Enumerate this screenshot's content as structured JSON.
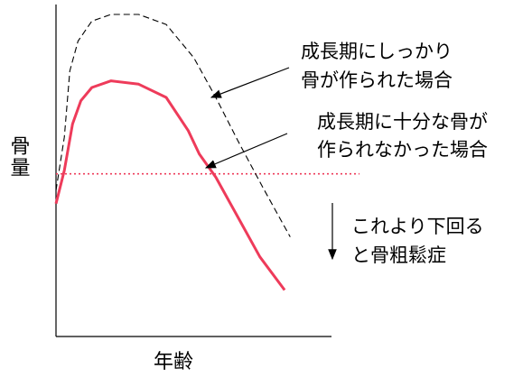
{
  "chart_data": {
    "type": "line",
    "title": "",
    "xlabel": "年齢",
    "ylabel": "骨量",
    "x_ticks": [],
    "y_ticks": [],
    "grid": false,
    "legend": "none",
    "series": [
      {
        "style": "dashed",
        "color": "#000000",
        "points": [
          {
            "age": 0,
            "bone": 44
          },
          {
            "age": 3,
            "bone": 60
          },
          {
            "age": 5,
            "bone": 80
          },
          {
            "age": 8,
            "bone": 89
          },
          {
            "age": 13,
            "bone": 95
          },
          {
            "age": 20,
            "bone": 97
          },
          {
            "age": 30,
            "bone": 97
          },
          {
            "age": 40,
            "bone": 94
          },
          {
            "age": 50,
            "bone": 84
          },
          {
            "age": 58,
            "bone": 72
          },
          {
            "age": 66,
            "bone": 59
          },
          {
            "age": 75,
            "bone": 45
          },
          {
            "age": 85,
            "bone": 30
          }
        ]
      },
      {
        "style": "solid",
        "color": "#ee3b5a",
        "points": [
          {
            "age": 0,
            "bone": 40
          },
          {
            "age": 3,
            "bone": 50
          },
          {
            "age": 6,
            "bone": 64
          },
          {
            "age": 9,
            "bone": 71
          },
          {
            "age": 13,
            "bone": 75
          },
          {
            "age": 20,
            "bone": 77
          },
          {
            "age": 30,
            "bone": 76
          },
          {
            "age": 40,
            "bone": 72
          },
          {
            "age": 48,
            "bone": 62
          },
          {
            "age": 52,
            "bone": 55
          },
          {
            "age": 58,
            "bone": 48
          },
          {
            "age": 66,
            "bone": 36
          },
          {
            "age": 74,
            "bone": 24
          },
          {
            "age": 83,
            "bone": 14
          }
        ]
      }
    ],
    "threshold": {
      "bone": 49,
      "style": "dotted",
      "color": "#ee3b5a"
    },
    "annotations": [
      {
        "id": "a1",
        "lines": [
          "成長期にしっかり",
          "骨が作られた場合"
        ],
        "points_to": "dashed"
      },
      {
        "id": "a2",
        "lines": [
          "成長期に十分な骨が",
          "作られなかった場合"
        ],
        "points_to": "solid"
      },
      {
        "id": "a3",
        "lines": [
          "これより下回る",
          "と骨粗鬆症"
        ],
        "points_to": "threshold"
      }
    ]
  }
}
